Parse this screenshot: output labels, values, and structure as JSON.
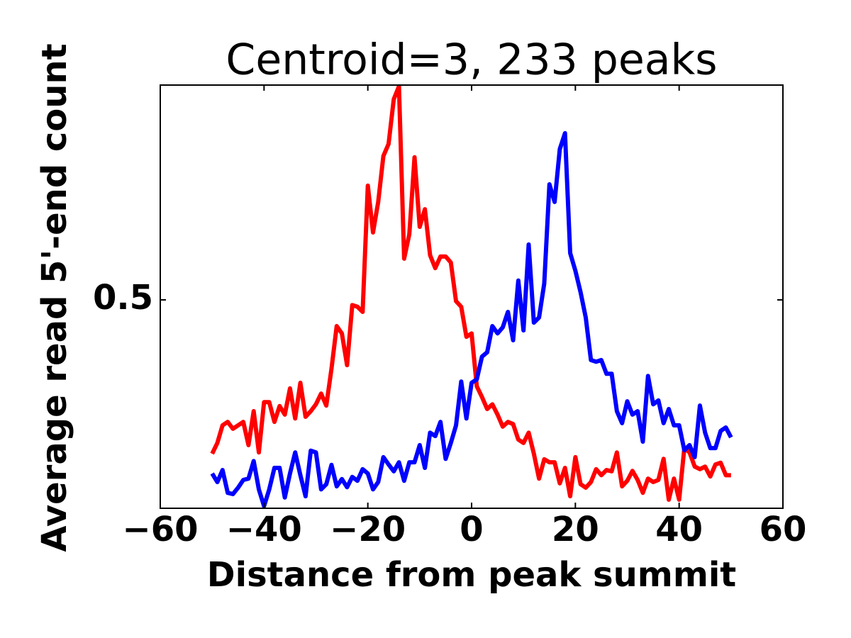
{
  "chart_data": {
    "type": "line",
    "title": "Centroid=3, 233 peaks",
    "x_label": "Distance from peak summit",
    "y_label": "Average read 5'-end count",
    "x": [
      -50,
      -49,
      -48,
      -47,
      -46,
      -45,
      -44,
      -43,
      -42,
      -41,
      -40,
      -39,
      -38,
      -37,
      -36,
      -35,
      -34,
      -33,
      -32,
      -31,
      -30,
      -29,
      -28,
      -27,
      -26,
      -25,
      -24,
      -23,
      -22,
      -21,
      -20,
      -19,
      -18,
      -17,
      -16,
      -15,
      -14,
      -13,
      -12,
      -11,
      -10,
      -9,
      -8,
      -7,
      -6,
      -5,
      -4,
      -3,
      -2,
      -1,
      0,
      1,
      2,
      3,
      4,
      5,
      6,
      7,
      8,
      9,
      10,
      11,
      12,
      13,
      14,
      15,
      16,
      17,
      18,
      19,
      20,
      21,
      22,
      23,
      24,
      25,
      26,
      27,
      28,
      29,
      30,
      31,
      32,
      33,
      34,
      35,
      36,
      37,
      38,
      39,
      40,
      41,
      42,
      43,
      44,
      45,
      46,
      47,
      48,
      49,
      50
    ],
    "series": [
      {
        "color": "#ff0000",
        "values": [
          0.142,
          0.167,
          0.208,
          0.216,
          0.2,
          0.208,
          0.216,
          0.162,
          0.241,
          0.145,
          0.262,
          0.262,
          0.216,
          0.253,
          0.233,
          0.294,
          0.224,
          0.307,
          0.228,
          0.241,
          0.257,
          0.282,
          0.254,
          0.34,
          0.439,
          0.422,
          0.348,
          0.488,
          0.484,
          0.472,
          0.766,
          0.657,
          0.728,
          0.835,
          0.863,
          0.967,
          0.997,
          0.596,
          0.653,
          0.832,
          0.67,
          0.711,
          0.604,
          0.574,
          0.601,
          0.601,
          0.587,
          0.497,
          0.484,
          0.414,
          0.422,
          0.299,
          0.274,
          0.246,
          0.257,
          0.233,
          0.205,
          0.216,
          0.211,
          0.175,
          0.167,
          0.191,
          0.142,
          0.084,
          0.129,
          0.122,
          0.122,
          0.073,
          0.109,
          0.043,
          0.134,
          0.071,
          0.063,
          0.076,
          0.106,
          0.092,
          0.104,
          0.101,
          0.145,
          0.066,
          0.079,
          0.102,
          0.081,
          0.051,
          0.084,
          0.076,
          0.081,
          0.13,
          0.035,
          0.084,
          0.035,
          0.155,
          0.145,
          0.112,
          0.106,
          0.112,
          0.089,
          0.117,
          0.121,
          0.092,
          0.092
        ]
      },
      {
        "color": "#0000ff",
        "values": [
          0.096,
          0.076,
          0.104,
          0.051,
          0.048,
          0.063,
          0.081,
          0.084,
          0.125,
          0.059,
          0.02,
          0.059,
          0.109,
          0.109,
          0.04,
          0.096,
          0.145,
          0.092,
          0.043,
          0.149,
          0.145,
          0.059,
          0.071,
          0.116,
          0.066,
          0.083,
          0.064,
          0.088,
          0.079,
          0.106,
          0.096,
          0.059,
          0.076,
          0.134,
          0.117,
          0.101,
          0.122,
          0.079,
          0.122,
          0.122,
          0.162,
          0.109,
          0.191,
          0.183,
          0.216,
          0.13,
          0.167,
          0.208,
          0.31,
          0.224,
          0.307,
          0.315,
          0.368,
          0.378,
          0.439,
          0.422,
          0.436,
          0.472,
          0.406,
          0.545,
          0.429,
          0.629,
          0.447,
          0.459,
          0.538,
          0.769,
          0.728,
          0.851,
          0.888,
          0.609,
          0.568,
          0.518,
          0.459,
          0.36,
          0.356,
          0.36,
          0.328,
          0.328,
          0.241,
          0.213,
          0.264,
          0.233,
          0.241,
          0.17,
          0.323,
          0.257,
          0.266,
          0.213,
          0.246,
          0.208,
          0.208,
          0.15,
          0.162,
          0.134,
          0.254,
          0.191,
          0.155,
          0.155,
          0.195,
          0.203,
          0.18
        ]
      }
    ],
    "xlim": [
      -60,
      60
    ],
    "xticks": [
      {
        "value": -60,
        "label": "−60"
      },
      {
        "value": -40,
        "label": "−40"
      },
      {
        "value": -20,
        "label": "−20"
      },
      0,
      20,
      40,
      60
    ],
    "ylim": [
      0.015,
      1.0
    ],
    "yticks": [
      0.5
    ]
  }
}
